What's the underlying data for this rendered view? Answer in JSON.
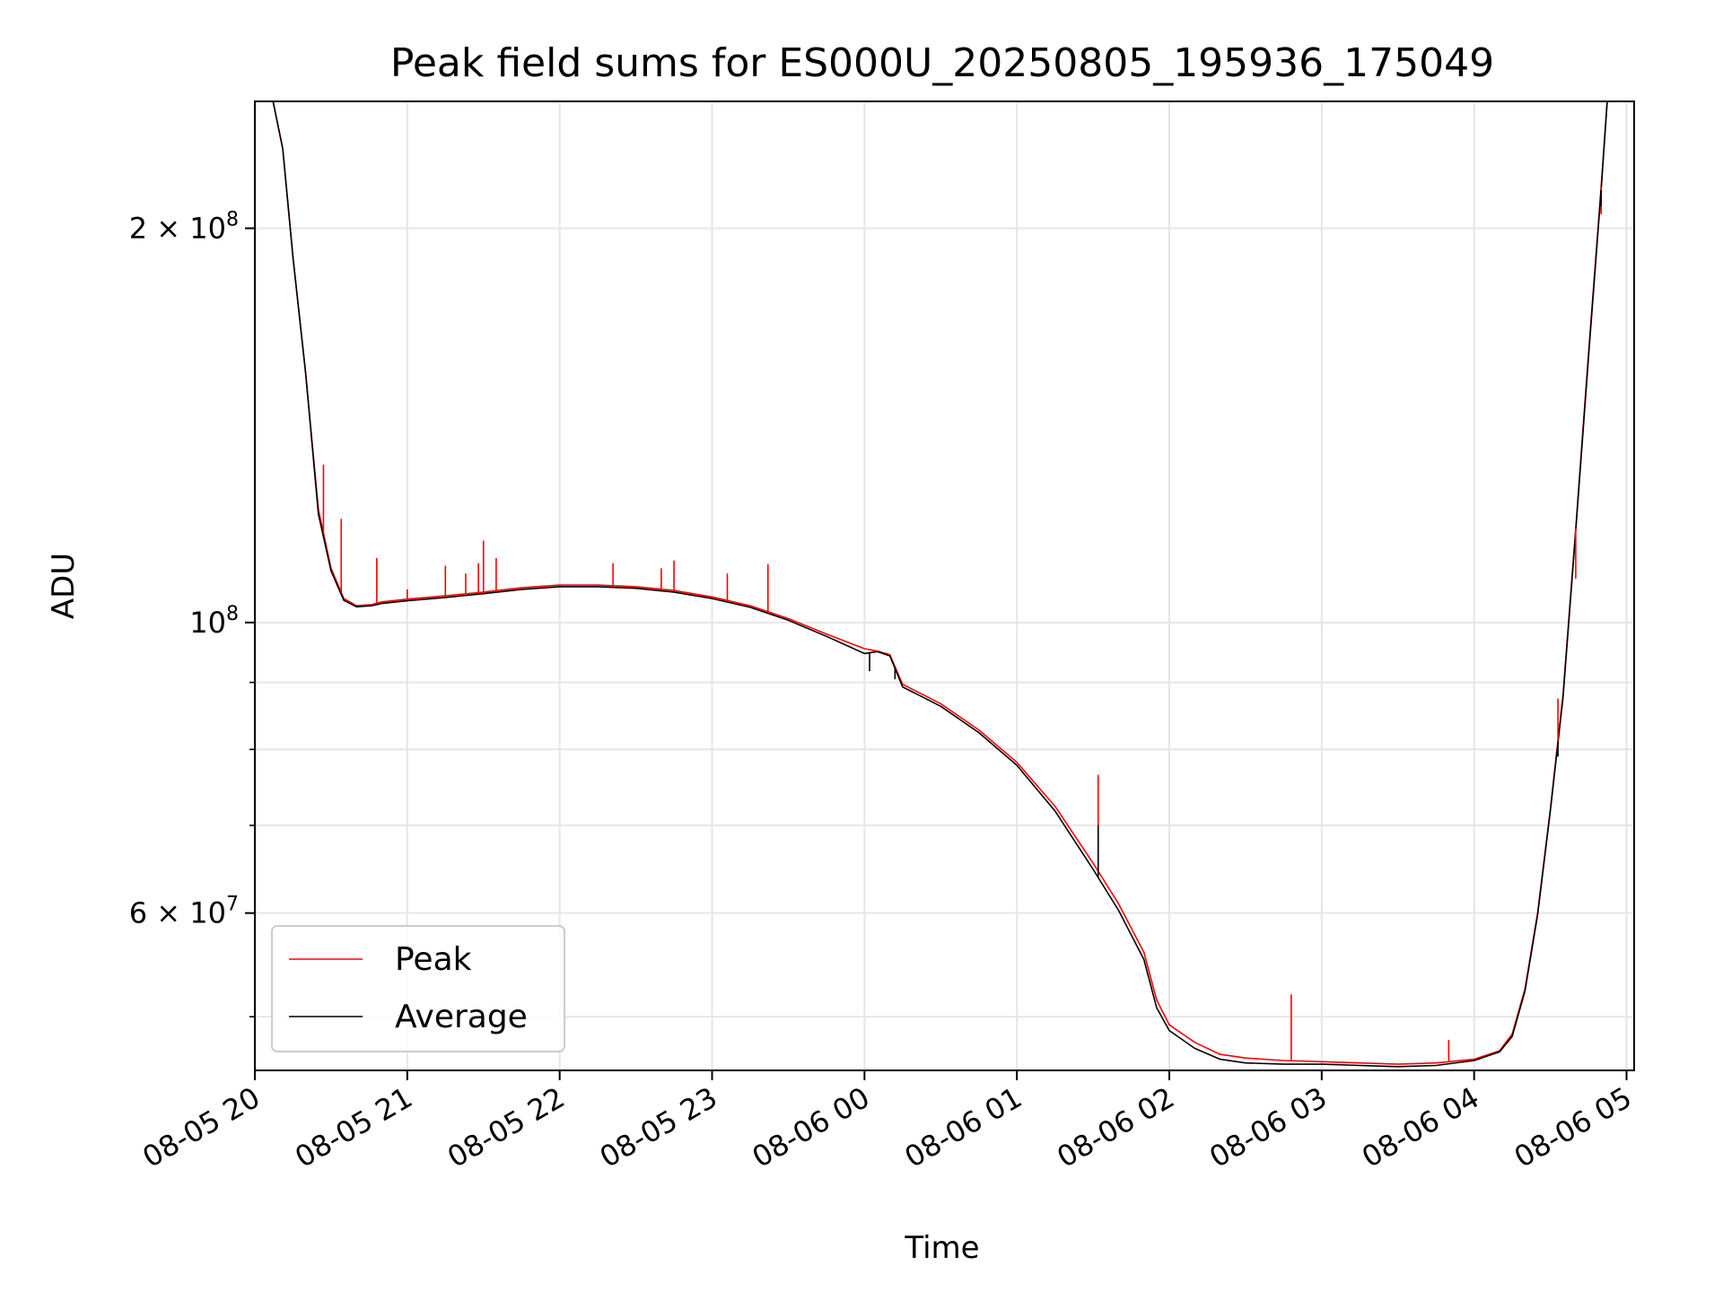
{
  "chart_data": {
    "type": "line",
    "title": "Peak field sums for ES000U_20250805_195936_175049",
    "xlabel": "Time",
    "ylabel": "ADU",
    "yscale": "log",
    "xlim": [
      "2025-08-05 20:00",
      "2025-08-06 05:03"
    ],
    "ylim": [
      45500000,
      250000000
    ],
    "grid": true,
    "legend_position": "lower-left",
    "x_ticks": [
      {
        "t": "2025-08-05 20:00",
        "label": "08-05 20"
      },
      {
        "t": "2025-08-05 21:00",
        "label": "08-05 21"
      },
      {
        "t": "2025-08-05 22:00",
        "label": "08-05 22"
      },
      {
        "t": "2025-08-05 23:00",
        "label": "08-05 23"
      },
      {
        "t": "2025-08-06 00:00",
        "label": "08-06 00"
      },
      {
        "t": "2025-08-06 01:00",
        "label": "08-06 01"
      },
      {
        "t": "2025-08-06 02:00",
        "label": "08-06 02"
      },
      {
        "t": "2025-08-06 03:00",
        "label": "08-06 03"
      },
      {
        "t": "2025-08-06 04:00",
        "label": "08-06 04"
      },
      {
        "t": "2025-08-06 05:00",
        "label": "08-06 05"
      }
    ],
    "y_ticks_major": [
      {
        "value": 100000000,
        "base": "10",
        "exp": "8"
      },
      {
        "value": 200000000,
        "base": "2 × 10",
        "exp": "8"
      },
      {
        "value": 60000000,
        "base": "6 × 10",
        "exp": "7"
      }
    ],
    "y_ticks_minor": [
      50000000,
      70000000,
      80000000,
      90000000
    ],
    "series": [
      {
        "name": "Peak",
        "color": "#ff0000",
        "x": [
          "2025-08-05 20:05",
          "2025-08-05 20:11",
          "2025-08-05 20:15",
          "2025-08-05 20:20",
          "2025-08-05 20:25",
          "2025-08-05 20:30",
          "2025-08-05 20:35",
          "2025-08-05 20:40",
          "2025-08-05 20:46",
          "2025-08-05 20:50",
          "2025-08-05 21:00",
          "2025-08-05 21:15",
          "2025-08-05 21:30",
          "2025-08-05 21:45",
          "2025-08-05 22:00",
          "2025-08-05 22:15",
          "2025-08-05 22:30",
          "2025-08-05 22:45",
          "2025-08-05 23:00",
          "2025-08-05 23:15",
          "2025-08-05 23:30",
          "2025-08-05 23:45",
          "2025-08-06 00:00",
          "2025-08-06 00:05",
          "2025-08-06 00:10",
          "2025-08-06 00:15",
          "2025-08-06 00:30",
          "2025-08-06 00:45",
          "2025-08-06 01:00",
          "2025-08-06 01:15",
          "2025-08-06 01:30",
          "2025-08-06 01:40",
          "2025-08-06 01:50",
          "2025-08-06 01:55",
          "2025-08-06 02:00",
          "2025-08-06 02:10",
          "2025-08-06 02:20",
          "2025-08-06 02:30",
          "2025-08-06 02:45",
          "2025-08-06 03:00",
          "2025-08-06 03:15",
          "2025-08-06 03:30",
          "2025-08-06 03:45",
          "2025-08-06 04:00",
          "2025-08-06 04:10",
          "2025-08-06 04:15",
          "2025-08-06 04:20",
          "2025-08-06 04:25",
          "2025-08-06 04:30",
          "2025-08-06 04:35",
          "2025-08-06 04:40",
          "2025-08-06 04:45",
          "2025-08-06 04:50",
          "2025-08-06 04:53"
        ],
        "y": [
          262000000,
          230000000,
          190000000,
          155000000,
          122000000,
          110000000,
          104300000,
          103000000,
          103200000,
          103700000,
          104200000,
          104800000,
          105500000,
          106300000,
          106800000,
          106800000,
          106500000,
          105800000,
          104600000,
          103000000,
          100700000,
          98000000,
          95500000,
          95100000,
          94500000,
          89700000,
          86700000,
          82800000,
          78200000,
          72400000,
          65500000,
          61000000,
          56000000,
          51500000,
          49300000,
          47800000,
          46800000,
          46500000,
          46300000,
          46200000,
          46100000,
          46000000,
          46100000,
          46400000,
          47100000,
          48500000,
          52500000,
          60000000,
          72000000,
          88000000,
          118000000,
          160000000,
          215000000,
          260000000
        ]
      },
      {
        "name": "Average",
        "color": "#000000",
        "x": [
          "2025-08-05 20:05",
          "2025-08-05 20:11",
          "2025-08-05 20:15",
          "2025-08-05 20:20",
          "2025-08-05 20:25",
          "2025-08-05 20:30",
          "2025-08-05 20:35",
          "2025-08-05 20:40",
          "2025-08-05 20:46",
          "2025-08-05 20:50",
          "2025-08-05 21:00",
          "2025-08-05 21:15",
          "2025-08-05 21:30",
          "2025-08-05 21:45",
          "2025-08-05 22:00",
          "2025-08-05 22:15",
          "2025-08-05 22:30",
          "2025-08-05 22:45",
          "2025-08-05 23:00",
          "2025-08-05 23:15",
          "2025-08-05 23:30",
          "2025-08-05 23:45",
          "2025-08-06 00:00",
          "2025-08-06 00:05",
          "2025-08-06 00:10",
          "2025-08-06 00:15",
          "2025-08-06 00:30",
          "2025-08-06 00:45",
          "2025-08-06 01:00",
          "2025-08-06 01:15",
          "2025-08-06 01:30",
          "2025-08-06 01:40",
          "2025-08-06 01:50",
          "2025-08-06 01:55",
          "2025-08-06 02:00",
          "2025-08-06 02:10",
          "2025-08-06 02:20",
          "2025-08-06 02:30",
          "2025-08-06 02:45",
          "2025-08-06 03:00",
          "2025-08-06 03:15",
          "2025-08-06 03:30",
          "2025-08-06 03:45",
          "2025-08-06 04:00",
          "2025-08-06 04:10",
          "2025-08-06 04:15",
          "2025-08-06 04:20",
          "2025-08-06 04:25",
          "2025-08-06 04:30",
          "2025-08-06 04:35",
          "2025-08-06 04:40",
          "2025-08-06 04:45",
          "2025-08-06 04:50",
          "2025-08-06 04:53"
        ],
        "y": [
          262000000,
          230000000,
          190000000,
          155000000,
          121000000,
          109500000,
          104000000,
          102800000,
          103000000,
          103400000,
          103900000,
          104500000,
          105200000,
          106000000,
          106500000,
          106500000,
          106200000,
          105500000,
          104300000,
          102700000,
          100400000,
          97600000,
          94700000,
          95000000,
          94300000,
          89300000,
          86300000,
          82400000,
          77800000,
          71800000,
          64800000,
          60300000,
          55300000,
          50800000,
          48800000,
          47300000,
          46400000,
          46100000,
          46000000,
          46000000,
          45900000,
          45800000,
          45900000,
          46300000,
          47000000,
          48300000,
          52300000,
          59800000,
          71800000,
          87600000,
          117500000,
          159000000,
          214000000,
          260000000
        ]
      }
    ],
    "spikes": {
      "Peak": [
        [
          "2025-08-05 20:27",
          132000000
        ],
        [
          "2025-08-05 20:34",
          120000000
        ],
        [
          "2025-08-05 20:48",
          112000000
        ],
        [
          "2025-08-05 21:00",
          106000000
        ],
        [
          "2025-08-05 21:15",
          110500000
        ],
        [
          "2025-08-05 21:23",
          109000000
        ],
        [
          "2025-08-05 21:28",
          111000000
        ],
        [
          "2025-08-05 21:30",
          115500000
        ],
        [
          "2025-08-05 21:35",
          112000000
        ],
        [
          "2025-08-05 22:21",
          111000000
        ],
        [
          "2025-08-05 22:40",
          110000000
        ],
        [
          "2025-08-05 22:45",
          111500000
        ],
        [
          "2025-08-05 23:06",
          109000000
        ],
        [
          "2025-08-05 23:22",
          110800000
        ],
        [
          "2025-08-06 01:32",
          76500000
        ],
        [
          "2025-08-06 02:48",
          52000000
        ],
        [
          "2025-08-06 03:50",
          48000000
        ],
        [
          "2025-08-06 04:33",
          87500000
        ],
        [
          "2025-08-06 04:40",
          108000000
        ],
        [
          "2025-08-06 04:50",
          205000000
        ]
      ],
      "Average": [
        [
          "2025-08-06 00:02",
          91800000
        ],
        [
          "2025-08-06 00:12",
          90500000
        ],
        [
          "2025-08-06 01:32",
          70000000
        ],
        [
          "2025-08-06 04:33",
          79000000
        ],
        [
          "2025-08-06 04:50",
          208000000
        ]
      ]
    }
  }
}
